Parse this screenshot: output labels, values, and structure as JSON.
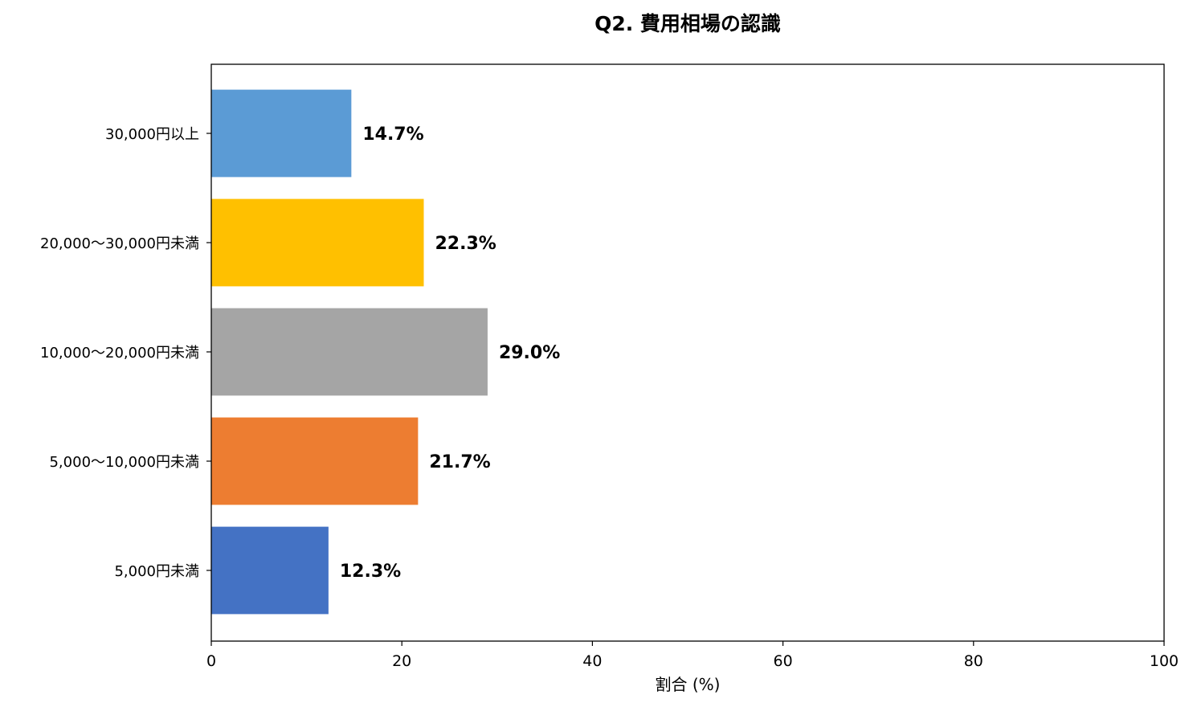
{
  "chart_data": {
    "type": "bar",
    "orientation": "horizontal",
    "title": "Q2. 費用相場の認識",
    "xlabel": "割合 (%)",
    "ylabel": "",
    "xlim": [
      0,
      100
    ],
    "xticks": [
      "0",
      "20",
      "40",
      "60",
      "80",
      "100"
    ],
    "grid": false,
    "categories": [
      "5,000円未満",
      "5,000〜10,000円未満",
      "10,000〜20,000円未満",
      "20,000〜30,000円未満",
      "30,000円以上"
    ],
    "values": [
      12.3,
      21.7,
      29.0,
      22.3,
      14.7
    ],
    "data_labels": [
      "12.3%",
      "21.7%",
      "29.0%",
      "22.3%",
      "14.7%"
    ],
    "colors": [
      "#4472C4",
      "#ED7D31",
      "#A5A5A5",
      "#FFC000",
      "#5B9BD5"
    ]
  }
}
